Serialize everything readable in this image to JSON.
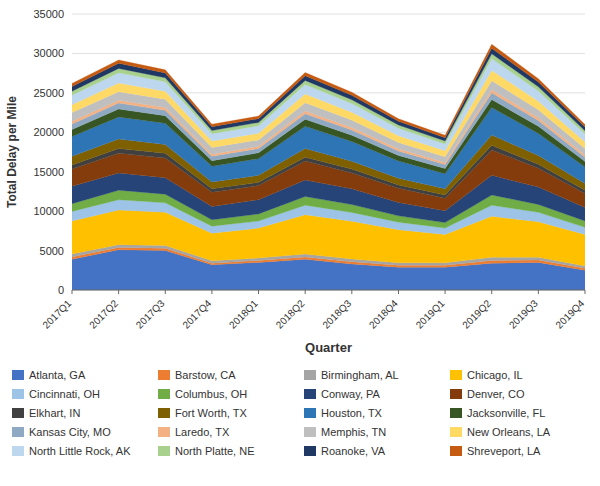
{
  "chart_data": {
    "type": "area",
    "stacked": true,
    "grid": true,
    "legend": "bottom",
    "x_label": "Quarter",
    "y_label": "Total Delay per Mile",
    "categories": [
      "2017Q1",
      "2017Q2",
      "2017Q3",
      "2017Q4",
      "2018Q1",
      "2018Q2",
      "2018Q3",
      "2018Q4",
      "2019Q1",
      "2019Q2",
      "2019Q3",
      "2019Q4"
    ],
    "ylim": [
      0,
      35000
    ],
    "yticks": [
      0,
      5000,
      10000,
      15000,
      20000,
      25000,
      30000,
      35000
    ],
    "series": [
      {
        "name": "Atlanta, GA",
        "color": "#4472C4",
        "values": [
          3900,
          5100,
          5000,
          3200,
          3500,
          3900,
          3300,
          2900,
          2900,
          3400,
          3500,
          2500
        ]
      },
      {
        "name": "Barstow, CA",
        "color": "#ED7D31",
        "values": [
          300,
          300,
          300,
          200,
          250,
          300,
          280,
          250,
          250,
          350,
          300,
          250
        ]
      },
      {
        "name": "Birmingham, AL",
        "color": "#A5A5A5",
        "values": [
          350,
          350,
          350,
          300,
          300,
          350,
          350,
          300,
          300,
          400,
          350,
          300
        ]
      },
      {
        "name": "Chicago, IL",
        "color": "#FFC000",
        "values": [
          4200,
          4400,
          4200,
          3500,
          3800,
          5000,
          4800,
          4200,
          3600,
          5200,
          4500,
          4000
        ]
      },
      {
        "name": "Cincinnati, OH",
        "color": "#9DC3E6",
        "values": [
          1200,
          1300,
          1200,
          900,
          900,
          1200,
          1100,
          950,
          800,
          1400,
          1200,
          900
        ]
      },
      {
        "name": "Columbus, OH",
        "color": "#70AD47",
        "values": [
          1000,
          1200,
          1100,
          800,
          900,
          1100,
          1000,
          800,
          700,
          1300,
          1000,
          800
        ]
      },
      {
        "name": "Conway, PA",
        "color": "#264478",
        "values": [
          2200,
          2200,
          2100,
          1700,
          1800,
          2100,
          2000,
          1700,
          1500,
          2500,
          2200,
          1700
        ]
      },
      {
        "name": "Denver, CO",
        "color": "#843C0C",
        "values": [
          2200,
          2500,
          2500,
          1800,
          1800,
          2400,
          2000,
          1800,
          1600,
          3200,
          2400,
          1800
        ]
      },
      {
        "name": "Elkhart, IN",
        "color": "#404040",
        "values": [
          500,
          600,
          600,
          450,
          400,
          500,
          500,
          420,
          400,
          600,
          500,
          400
        ]
      },
      {
        "name": "Fort Worth, TX",
        "color": "#7F6000",
        "values": [
          1100,
          1200,
          1100,
          850,
          900,
          1100,
          1000,
          850,
          800,
          1300,
          1100,
          850
        ]
      },
      {
        "name": "Houston, TX",
        "color": "#2E75B6",
        "values": [
          2500,
          2800,
          2700,
          2000,
          2100,
          2800,
          2500,
          2200,
          1900,
          3500,
          2800,
          2100
        ]
      },
      {
        "name": "Jacksonville, FL",
        "color": "#375623",
        "values": [
          900,
          1000,
          950,
          700,
          750,
          900,
          800,
          700,
          650,
          1000,
          900,
          700
        ]
      },
      {
        "name": "Kansas City, MO",
        "color": "#8EA9C1",
        "values": [
          700,
          750,
          700,
          550,
          550,
          700,
          650,
          550,
          500,
          850,
          750,
          550
        ]
      },
      {
        "name": "Laredo, TX",
        "color": "#F4B183",
        "values": [
          350,
          350,
          350,
          280,
          280,
          350,
          320,
          280,
          260,
          400,
          350,
          280
        ]
      },
      {
        "name": "Memphis, TN",
        "color": "#BFBFBF",
        "values": [
          1100,
          1100,
          1050,
          850,
          800,
          1050,
          950,
          820,
          750,
          1150,
          1000,
          800
        ]
      },
      {
        "name": "New Orleans, LA",
        "color": "#FFD966",
        "values": [
          1000,
          1100,
          1000,
          800,
          850,
          1100,
          1000,
          850,
          750,
          1300,
          1100,
          850
        ]
      },
      {
        "name": "North Little Rock, AK",
        "color": "#BDD7EE",
        "values": [
          1200,
          1300,
          1200,
          950,
          950,
          1200,
          1100,
          950,
          850,
          1500,
          1300,
          1000
        ]
      },
      {
        "name": "North Platte, NE",
        "color": "#A9D18E",
        "values": [
          500,
          550,
          500,
          400,
          420,
          520,
          480,
          400,
          370,
          600,
          520,
          400
        ]
      },
      {
        "name": "Roanoke, VA",
        "color": "#1F3864",
        "values": [
          600,
          650,
          620,
          480,
          480,
          600,
          560,
          480,
          440,
          700,
          600,
          480
        ]
      },
      {
        "name": "Shreveport, LA",
        "color": "#C55A11",
        "values": [
          400,
          420,
          400,
          320,
          320,
          400,
          380,
          320,
          300,
          500,
          420,
          320
        ]
      }
    ]
  }
}
